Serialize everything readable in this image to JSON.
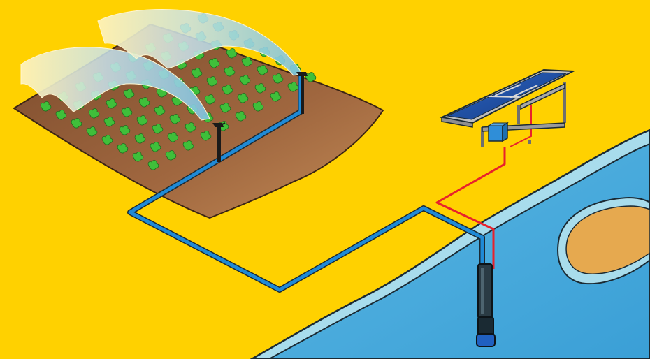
{
  "diagram": {
    "subject": "solar-powered-irrigation-system",
    "components": [
      {
        "id": "field",
        "icon": "crop-field-icon"
      },
      {
        "id": "sprinklers",
        "icon": "sprinkler-icon",
        "count": 2
      },
      {
        "id": "solar-panel",
        "icon": "solar-panel-icon"
      },
      {
        "id": "controller",
        "icon": "pump-controller-icon"
      },
      {
        "id": "pump",
        "icon": "submersible-pump-icon"
      },
      {
        "id": "water",
        "icon": "river-icon"
      },
      {
        "id": "island",
        "icon": "sandbank-icon"
      }
    ],
    "colors": {
      "background": "#ffd100",
      "water": "#4aaedf",
      "water_edge": "#a8dcec",
      "soil": "#a0673f",
      "crop": "#3fbf3a",
      "water_pipe": "#1f8ad6",
      "power_cable": "#e8212b",
      "panel": "#1f4fa3",
      "frame": "#a8a8a8",
      "pump": "#2a3b44",
      "island": "#e6a94f"
    }
  }
}
